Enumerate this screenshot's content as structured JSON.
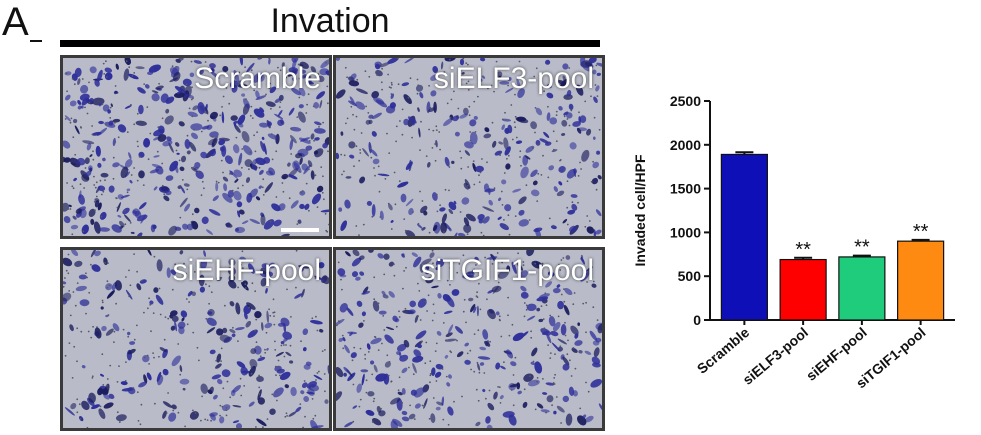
{
  "panel_letter": "A",
  "figure_title": "Invation",
  "images": [
    {
      "label": "Scramble"
    },
    {
      "label": "siELF3-pool"
    },
    {
      "label": "siEHF-pool"
    },
    {
      "label": "siTGIF1-pool"
    }
  ],
  "chart_data": {
    "type": "bar",
    "title": "",
    "xlabel": "",
    "ylabel": "Invaded cell/HPF",
    "categories": [
      "Scramble",
      "siELF3-pool",
      "siEHF-pool",
      "siTGIF1-pool"
    ],
    "values": [
      1890,
      690,
      720,
      900
    ],
    "errors": [
      25,
      20,
      15,
      15
    ],
    "significance": [
      "",
      "**",
      "**",
      "**"
    ],
    "colors": [
      "#0f0fb8",
      "#ff0000",
      "#1ecc7c",
      "#ff8a12"
    ],
    "ylim": [
      0,
      2500
    ],
    "yticks": [
      0,
      500,
      1000,
      1500,
      2000,
      2500
    ],
    "grid": false,
    "legend": "none"
  }
}
